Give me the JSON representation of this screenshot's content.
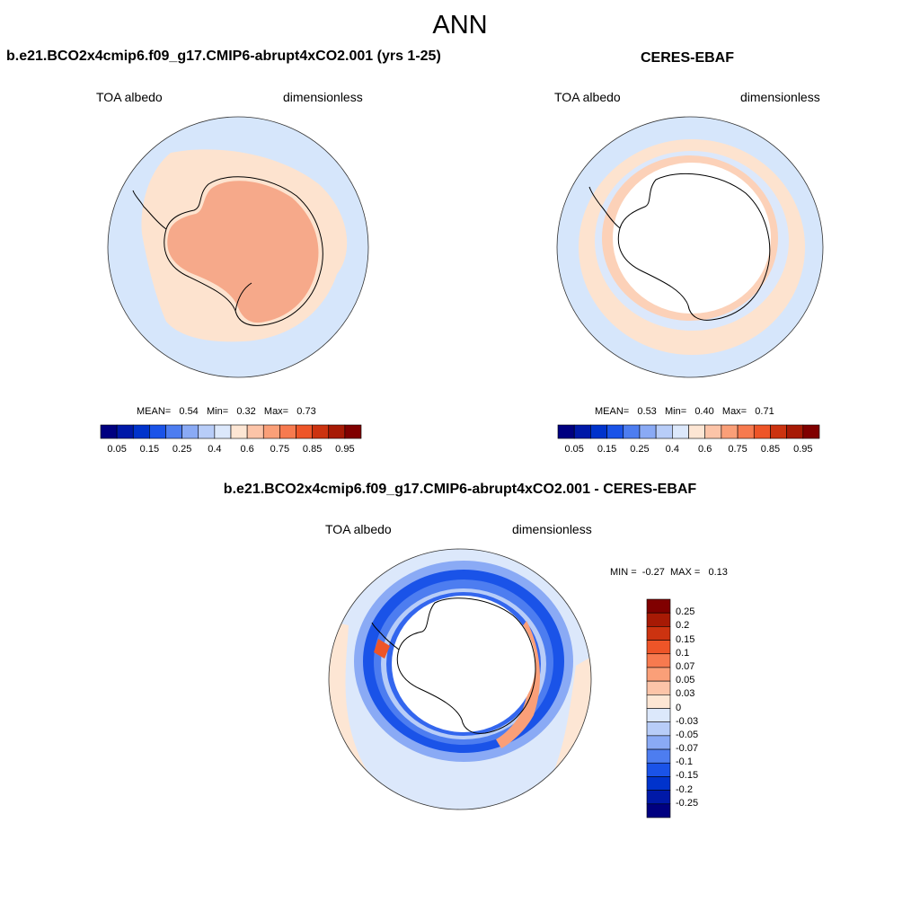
{
  "page_title": "ANN",
  "panels": [
    {
      "title": "b.e21.BCO2x4cmip6.f09_g17.CMIP6-abrupt4xCO2.001 (yrs 1-25)",
      "left_label": "TOA albedo",
      "right_label": "dimensionless",
      "stats": {
        "mean_label": "MEAN=",
        "mean": "0.54",
        "min_label": "Min=",
        "min": "0.32",
        "max_label": "Max=",
        "max": "0.73"
      }
    },
    {
      "title": "CERES-EBAF",
      "left_label": "TOA albedo",
      "right_label": "dimensionless",
      "stats": {
        "mean_label": "MEAN=",
        "mean": "0.53",
        "min_label": "Min=",
        "min": "0.40",
        "max_label": "Max=",
        "max": "0.71"
      }
    },
    {
      "title": "b.e21.BCO2x4cmip6.f09_g17.CMIP6-abrupt4xCO2.001 - CERES-EBAF",
      "left_label": "TOA albedo",
      "right_label": "dimensionless",
      "stats": {
        "min_label": "MIN =",
        "min": "-0.27",
        "max_label": "MAX =",
        "max": "0.13"
      }
    }
  ],
  "colorbar_abs": {
    "colors": [
      "#000080",
      "#0019a8",
      "#0033cc",
      "#1a53e8",
      "#4d7df0",
      "#8aaaf5",
      "#b8cdf8",
      "#dce8fb",
      "#fde6d4",
      "#fcc4a8",
      "#fa9f78",
      "#f77a4f",
      "#ee5528",
      "#cc3310",
      "#a71a05",
      "#800000"
    ],
    "tick_labels": [
      "0.05",
      "0.15",
      "0.25",
      "0.4",
      "0.6",
      "0.75",
      "0.85",
      "0.95"
    ]
  },
  "colorbar_diff": {
    "colors": [
      "#800000",
      "#a71a05",
      "#cc3310",
      "#ee5528",
      "#f77a4f",
      "#fa9f78",
      "#fcc4a8",
      "#fde6d4",
      "#dce8fb",
      "#b8cdf8",
      "#8aaaf5",
      "#4d7df0",
      "#1a53e8",
      "#0033cc",
      "#0019a8",
      "#000080"
    ],
    "tick_labels": [
      "0.25",
      "0.2",
      "0.15",
      "0.1",
      "0.07",
      "0.05",
      "0.03",
      "0",
      "-0.03",
      "-0.05",
      "-0.07",
      "-0.1",
      "-0.15",
      "-0.2",
      "-0.25"
    ]
  },
  "chart_data": [
    {
      "type": "heatmap",
      "projection": "south-polar-stereographic",
      "title": "b.e21.BCO2x4cmip6.f09_g17.CMIP6-abrupt4xCO2.001 (yrs 1-25)",
      "variable": "TOA albedo",
      "units": "dimensionless",
      "levels": [
        0.05,
        0.1,
        0.15,
        0.2,
        0.25,
        0.3,
        0.4,
        0.5,
        0.6,
        0.7,
        0.75,
        0.8,
        0.85,
        0.9,
        0.95
      ],
      "mean": 0.54,
      "min": 0.32,
      "max": 0.73
    },
    {
      "type": "heatmap",
      "projection": "south-polar-stereographic",
      "title": "CERES-EBAF",
      "variable": "TOA albedo",
      "units": "dimensionless",
      "levels": [
        0.05,
        0.1,
        0.15,
        0.2,
        0.25,
        0.3,
        0.4,
        0.5,
        0.6,
        0.7,
        0.75,
        0.8,
        0.85,
        0.9,
        0.95
      ],
      "mean": 0.53,
      "min": 0.4,
      "max": 0.71
    },
    {
      "type": "heatmap",
      "projection": "south-polar-stereographic",
      "title": "b.e21.BCO2x4cmip6.f09_g17.CMIP6-abrupt4xCO2.001 - CERES-EBAF",
      "variable": "TOA albedo",
      "units": "dimensionless",
      "levels": [
        -0.25,
        -0.2,
        -0.15,
        -0.1,
        -0.07,
        -0.05,
        -0.03,
        0,
        0.03,
        0.05,
        0.07,
        0.1,
        0.15,
        0.2,
        0.25
      ],
      "min": -0.27,
      "max": 0.13
    }
  ]
}
